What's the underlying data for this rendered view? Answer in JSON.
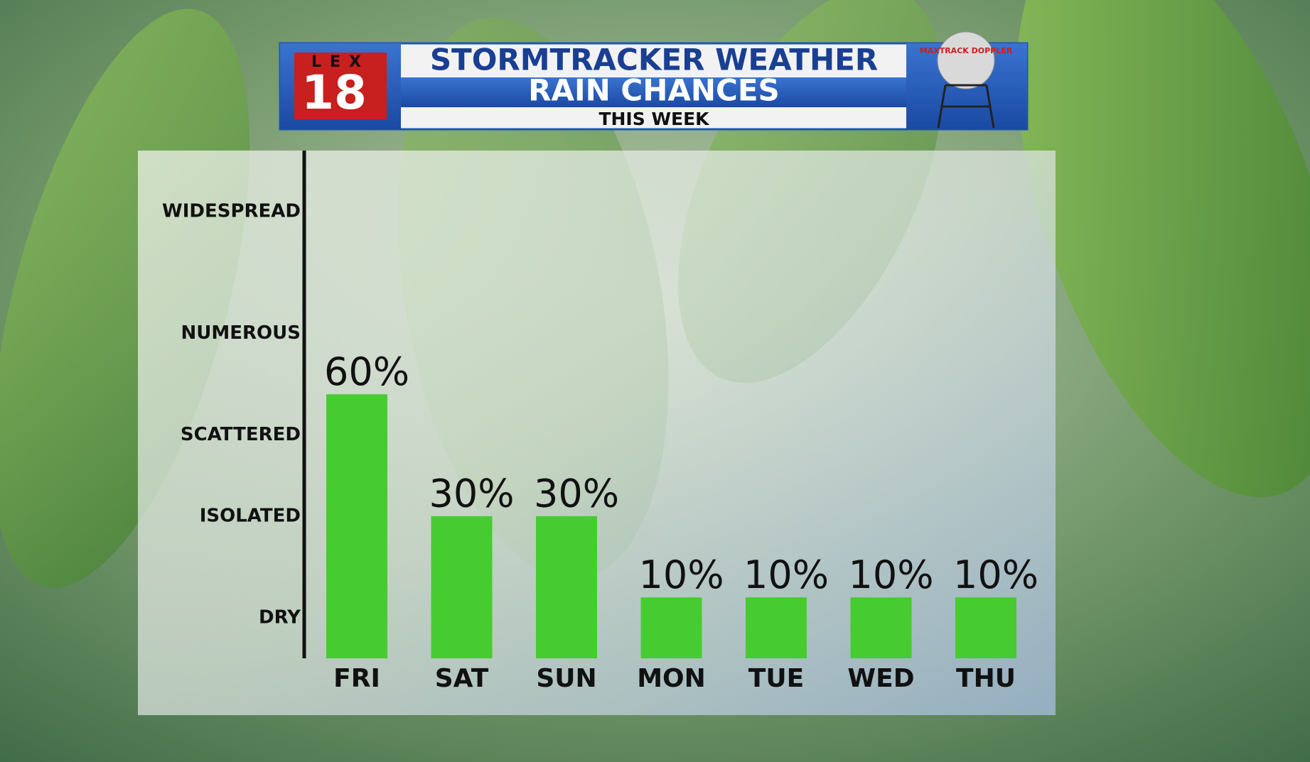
{
  "header": {
    "logo_letters": "LEX",
    "logo_number": "18",
    "radar_logo": "MAXTRACK DOPPLER"
  },
  "chart_data": {
    "type": "bar",
    "title": "STORMTRACKER WEATHER",
    "subtitle": "RAIN CHANCES",
    "caption": "THIS WEEK",
    "categories": [
      "FRI",
      "SAT",
      "SUN",
      "MON",
      "TUE",
      "WED",
      "THU"
    ],
    "values": [
      60,
      30,
      30,
      10,
      10,
      10,
      10
    ],
    "value_labels": [
      "60%",
      "30%",
      "30%",
      "10%",
      "10%",
      "10%",
      "10%"
    ],
    "color": "#46cc31",
    "ylim": [
      -5,
      120
    ],
    "yticks": [
      {
        "value": 5,
        "label": "DRY"
      },
      {
        "value": 30,
        "label": "ISOLATED"
      },
      {
        "value": 50,
        "label": "SCATTERED"
      },
      {
        "value": 75,
        "label": "NUMEROUS"
      },
      {
        "value": 105,
        "label": "WIDESPREAD"
      }
    ],
    "grid": false
  }
}
